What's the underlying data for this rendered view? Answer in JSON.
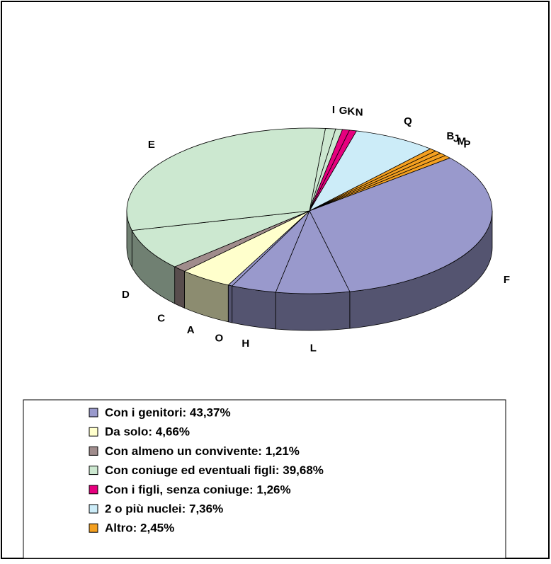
{
  "chart_data": {
    "type": "pie3d",
    "slices": [
      {
        "name": "I",
        "value": 0.9,
        "color": "#cce8d0"
      },
      {
        "name": "G",
        "value": 0.6,
        "color": "#cce8d0"
      },
      {
        "name": "K",
        "value": 0.63,
        "color": "#e6007e"
      },
      {
        "name": "N",
        "value": 0.63,
        "color": "#e6007e"
      },
      {
        "name": "Q",
        "value": 7.36,
        "color": "#ccecf8"
      },
      {
        "name": "B",
        "value": 0.62,
        "color": "#f4a020"
      },
      {
        "name": "J",
        "value": 0.61,
        "color": "#f4a020"
      },
      {
        "name": "M",
        "value": 0.61,
        "color": "#f4a020"
      },
      {
        "name": "P",
        "value": 0.61,
        "color": "#f4a020"
      },
      {
        "name": "F",
        "value": 32.5,
        "color": "#9999cc"
      },
      {
        "name": "L",
        "value": 6.5,
        "color": "#9999cc"
      },
      {
        "name": "H",
        "value": 4.0,
        "color": "#9999cc"
      },
      {
        "name": "O",
        "value": 0.37,
        "color": "#9999cc"
      },
      {
        "name": "A",
        "value": 4.66,
        "color": "#ffffcc"
      },
      {
        "name": "C",
        "value": 1.21,
        "color": "#a08c8c"
      },
      {
        "name": "D",
        "value": 8.0,
        "color": "#cce8d0"
      },
      {
        "name": "E",
        "value": 30.18,
        "color": "#cce8d0"
      }
    ],
    "legend": [
      {
        "label": "Con i genitori: 43,37%",
        "color": "#9999cc"
      },
      {
        "label": "Da solo: 4,66%",
        "color": "#ffffcc"
      },
      {
        "label": "Con almeno un convivente: 1,21%",
        "color": "#a08c8c"
      },
      {
        "label": "Con coniuge ed eventuali figli: 39,68%",
        "color": "#cce8d0"
      },
      {
        "label": "Con i figli, senza coniuge: 1,26%",
        "color": "#e6007e"
      },
      {
        "label": "2 o più nuclei: 7,36%",
        "color": "#ccecf8"
      },
      {
        "label": "Altro: 2,45%",
        "color": "#f4a020"
      }
    ]
  }
}
